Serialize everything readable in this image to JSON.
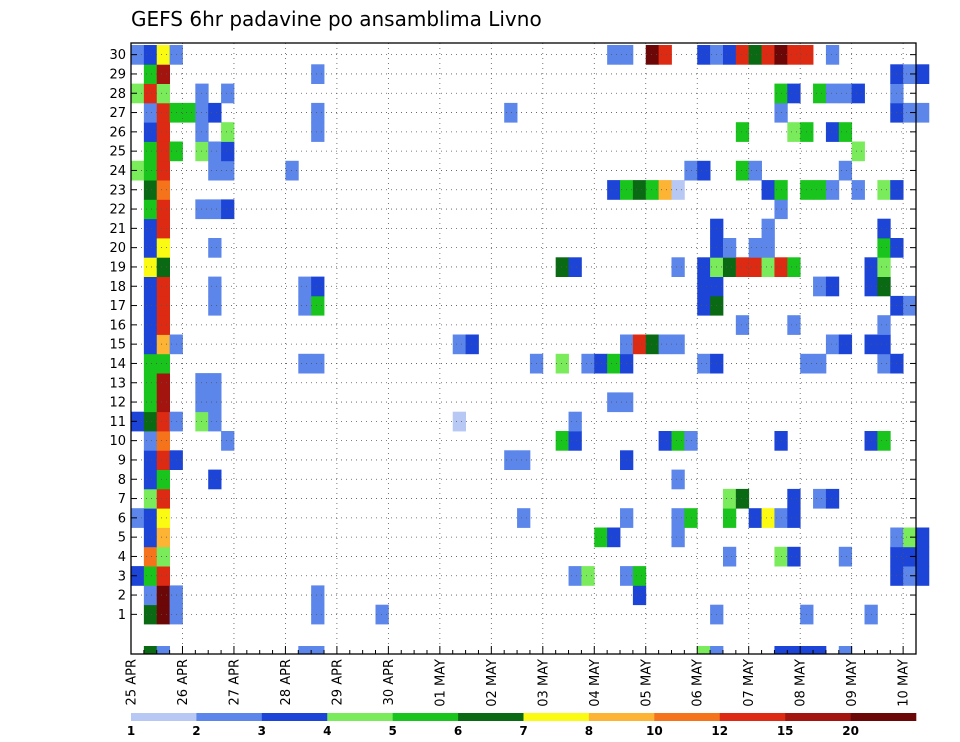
{
  "chart_data": {
    "type": "heatmap",
    "title": "GEFS 6hr padavine po ansamblima Livno",
    "xlabel": "",
    "ylabel": "",
    "x_tick_labels": [
      "25 APR",
      "26 APR",
      "27 APR",
      "28 APR",
      "29 APR",
      "30 APR",
      "01 MAY",
      "02 MAY",
      "03 MAY",
      "04 MAY",
      "05 MAY",
      "06 MAY",
      "07 MAY",
      "08 MAY",
      "09 MAY",
      "10 MAY"
    ],
    "x_steps_per_day": 4,
    "x_range_steps": [
      0,
      61
    ],
    "y_tick_labels": [
      "1",
      "2",
      "3",
      "4",
      "5",
      "6",
      "7",
      "8",
      "9",
      "10",
      "11",
      "12",
      "13",
      "14",
      "15",
      "16",
      "17",
      "18",
      "19",
      "20",
      "21",
      "22",
      "23",
      "24",
      "25",
      "26",
      "27",
      "28",
      "29",
      "30"
    ],
    "y_range_members": [
      0,
      30
    ],
    "grid": true,
    "colorbar": {
      "levels": [
        1,
        2,
        3,
        4,
        5,
        6,
        7,
        8,
        10,
        12,
        15,
        20
      ],
      "level_labels": [
        "1",
        "2",
        "3",
        "4",
        "5",
        "6",
        "7",
        "8",
        "10",
        "12",
        "15",
        "20"
      ],
      "colors": [
        "#b7c8f5",
        "#5c86ea",
        "#1c44d6",
        "#7aec5b",
        "#19c41c",
        "#0a6a14",
        "#fafa12",
        "#fdb334",
        "#f5741b",
        "#dc2a13",
        "#a3140f",
        "#6c0707"
      ]
    },
    "cells_format": "[member, step, bin]",
    "cells": [
      [
        0,
        1,
        5
      ],
      [
        0,
        2,
        11
      ],
      [
        0,
        3,
        1
      ],
      [
        0,
        14,
        1
      ],
      [
        0,
        19,
        1
      ],
      [
        0,
        52,
        1
      ],
      [
        0,
        45,
        1
      ],
      [
        0,
        57,
        1
      ],
      [
        1,
        1,
        1
      ],
      [
        1,
        2,
        11
      ],
      [
        1,
        3,
        1
      ],
      [
        1,
        14,
        1
      ],
      [
        1,
        39,
        2
      ],
      [
        2,
        0,
        2
      ],
      [
        2,
        1,
        4
      ],
      [
        2,
        2,
        9
      ],
      [
        2,
        34,
        1
      ],
      [
        2,
        35,
        3
      ],
      [
        2,
        38,
        1
      ],
      [
        2,
        39,
        4
      ],
      [
        2,
        59,
        2
      ],
      [
        2,
        60,
        1
      ],
      [
        2,
        61,
        2
      ],
      [
        3,
        1,
        8
      ],
      [
        3,
        2,
        3
      ],
      [
        3,
        46,
        1
      ],
      [
        3,
        50,
        3
      ],
      [
        3,
        51,
        2
      ],
      [
        3,
        55,
        1
      ],
      [
        3,
        59,
        2
      ],
      [
        3,
        60,
        2
      ],
      [
        3,
        61,
        2
      ],
      [
        4,
        1,
        2
      ],
      [
        4,
        2,
        7
      ],
      [
        4,
        36,
        4
      ],
      [
        4,
        37,
        2
      ],
      [
        4,
        42,
        1
      ],
      [
        4,
        59,
        1
      ],
      [
        4,
        60,
        3
      ],
      [
        4,
        61,
        2
      ],
      [
        5,
        0,
        1
      ],
      [
        5,
        1,
        2
      ],
      [
        5,
        2,
        6
      ],
      [
        5,
        30,
        1
      ],
      [
        5,
        38,
        1
      ],
      [
        5,
        42,
        1
      ],
      [
        5,
        43,
        4
      ],
      [
        5,
        46,
        4
      ],
      [
        5,
        48,
        2
      ],
      [
        5,
        49,
        6
      ],
      [
        5,
        50,
        1
      ],
      [
        5,
        51,
        2
      ],
      [
        6,
        1,
        3
      ],
      [
        6,
        2,
        9
      ],
      [
        6,
        46,
        3
      ],
      [
        6,
        47,
        5
      ],
      [
        6,
        51,
        2
      ],
      [
        6,
        53,
        1
      ],
      [
        6,
        54,
        2
      ],
      [
        7,
        1,
        2
      ],
      [
        7,
        2,
        4
      ],
      [
        7,
        6,
        2
      ],
      [
        7,
        42,
        1
      ],
      [
        8,
        1,
        2
      ],
      [
        8,
        2,
        9
      ],
      [
        8,
        3,
        2
      ],
      [
        8,
        29,
        1
      ],
      [
        8,
        30,
        1
      ],
      [
        8,
        38,
        2
      ],
      [
        9,
        1,
        1
      ],
      [
        9,
        2,
        8
      ],
      [
        9,
        7,
        1
      ],
      [
        9,
        33,
        4
      ],
      [
        9,
        34,
        2
      ],
      [
        9,
        41,
        2
      ],
      [
        9,
        42,
        4
      ],
      [
        9,
        43,
        1
      ],
      [
        9,
        50,
        2
      ],
      [
        9,
        57,
        2
      ],
      [
        9,
        58,
        4
      ],
      [
        10,
        0,
        2
      ],
      [
        10,
        1,
        5
      ],
      [
        10,
        2,
        9
      ],
      [
        10,
        3,
        1
      ],
      [
        10,
        5,
        3
      ],
      [
        10,
        6,
        1
      ],
      [
        10,
        25,
        0
      ],
      [
        10,
        34,
        1
      ],
      [
        11,
        1,
        4
      ],
      [
        11,
        2,
        10
      ],
      [
        11,
        5,
        1
      ],
      [
        11,
        6,
        1
      ],
      [
        11,
        37,
        1
      ],
      [
        11,
        38,
        1
      ],
      [
        12,
        1,
        4
      ],
      [
        12,
        2,
        10
      ],
      [
        12,
        5,
        1
      ],
      [
        12,
        6,
        1
      ],
      [
        13,
        1,
        4
      ],
      [
        13,
        2,
        4
      ],
      [
        13,
        13,
        1
      ],
      [
        13,
        14,
        1
      ],
      [
        13,
        31,
        1
      ],
      [
        13,
        33,
        3
      ],
      [
        13,
        35,
        1
      ],
      [
        13,
        36,
        2
      ],
      [
        13,
        37,
        4
      ],
      [
        13,
        38,
        2
      ],
      [
        13,
        44,
        1
      ],
      [
        13,
        45,
        2
      ],
      [
        13,
        52,
        1
      ],
      [
        13,
        53,
        1
      ],
      [
        13,
        58,
        1
      ],
      [
        13,
        59,
        2
      ],
      [
        14,
        1,
        2
      ],
      [
        14,
        2,
        7
      ],
      [
        14,
        3,
        1
      ],
      [
        14,
        25,
        1
      ],
      [
        14,
        26,
        2
      ],
      [
        14,
        38,
        1
      ],
      [
        14,
        39,
        9
      ],
      [
        14,
        40,
        5
      ],
      [
        14,
        41,
        1
      ],
      [
        14,
        42,
        1
      ],
      [
        14,
        54,
        1
      ],
      [
        14,
        55,
        2
      ],
      [
        14,
        57,
        2
      ],
      [
        14,
        58,
        2
      ],
      [
        15,
        1,
        2
      ],
      [
        15,
        2,
        9
      ],
      [
        15,
        47,
        1
      ],
      [
        15,
        51,
        1
      ],
      [
        15,
        58,
        1
      ],
      [
        16,
        1,
        2
      ],
      [
        16,
        2,
        9
      ],
      [
        16,
        6,
        1
      ],
      [
        16,
        13,
        1
      ],
      [
        16,
        14,
        4
      ],
      [
        16,
        44,
        2
      ],
      [
        16,
        45,
        5
      ],
      [
        16,
        59,
        2
      ],
      [
        16,
        60,
        1
      ],
      [
        17,
        1,
        2
      ],
      [
        17,
        2,
        9
      ],
      [
        17,
        6,
        1
      ],
      [
        17,
        13,
        1
      ],
      [
        17,
        14,
        2
      ],
      [
        17,
        44,
        2
      ],
      [
        17,
        45,
        2
      ],
      [
        17,
        53,
        1
      ],
      [
        17,
        54,
        2
      ],
      [
        17,
        57,
        2
      ],
      [
        17,
        58,
        5
      ],
      [
        18,
        1,
        6
      ],
      [
        18,
        2,
        5
      ],
      [
        18,
        33,
        5
      ],
      [
        18,
        34,
        2
      ],
      [
        18,
        42,
        1
      ],
      [
        18,
        44,
        2
      ],
      [
        18,
        45,
        3
      ],
      [
        18,
        46,
        5
      ],
      [
        18,
        47,
        9
      ],
      [
        18,
        48,
        9
      ],
      [
        18,
        49,
        3
      ],
      [
        18,
        50,
        9
      ],
      [
        18,
        51,
        4
      ],
      [
        18,
        57,
        2
      ],
      [
        18,
        58,
        3
      ],
      [
        19,
        1,
        2
      ],
      [
        19,
        2,
        6
      ],
      [
        19,
        6,
        1
      ],
      [
        19,
        45,
        2
      ],
      [
        19,
        46,
        1
      ],
      [
        19,
        48,
        1
      ],
      [
        19,
        49,
        1
      ],
      [
        19,
        58,
        4
      ],
      [
        19,
        59,
        2
      ],
      [
        20,
        1,
        2
      ],
      [
        20,
        2,
        9
      ],
      [
        20,
        45,
        2
      ],
      [
        20,
        49,
        1
      ],
      [
        20,
        58,
        2
      ],
      [
        21,
        1,
        4
      ],
      [
        21,
        2,
        9
      ],
      [
        21,
        5,
        1
      ],
      [
        21,
        6,
        1
      ],
      [
        21,
        7,
        2
      ],
      [
        21,
        50,
        1
      ],
      [
        22,
        1,
        5
      ],
      [
        22,
        2,
        8
      ],
      [
        22,
        37,
        2
      ],
      [
        22,
        38,
        4
      ],
      [
        22,
        39,
        5
      ],
      [
        22,
        40,
        4
      ],
      [
        22,
        41,
        7
      ],
      [
        22,
        42,
        0
      ],
      [
        22,
        49,
        2
      ],
      [
        22,
        50,
        4
      ],
      [
        22,
        52,
        4
      ],
      [
        22,
        53,
        4
      ],
      [
        22,
        54,
        1
      ],
      [
        22,
        56,
        1
      ],
      [
        22,
        58,
        3
      ],
      [
        22,
        59,
        2
      ],
      [
        23,
        0,
        3
      ],
      [
        23,
        1,
        4
      ],
      [
        23,
        2,
        9
      ],
      [
        23,
        6,
        1
      ],
      [
        23,
        7,
        1
      ],
      [
        23,
        12,
        1
      ],
      [
        23,
        43,
        1
      ],
      [
        23,
        44,
        2
      ],
      [
        23,
        47,
        4
      ],
      [
        23,
        48,
        1
      ],
      [
        23,
        55,
        1
      ],
      [
        24,
        1,
        4
      ],
      [
        24,
        2,
        9
      ],
      [
        24,
        3,
        4
      ],
      [
        24,
        5,
        3
      ],
      [
        24,
        6,
        1
      ],
      [
        24,
        7,
        2
      ],
      [
        24,
        56,
        3
      ],
      [
        25,
        1,
        2
      ],
      [
        25,
        2,
        9
      ],
      [
        25,
        5,
        1
      ],
      [
        25,
        7,
        3
      ],
      [
        25,
        14,
        1
      ],
      [
        25,
        54,
        2
      ],
      [
        25,
        47,
        4
      ],
      [
        25,
        51,
        3
      ],
      [
        25,
        52,
        4
      ],
      [
        25,
        55,
        4
      ],
      [
        26,
        1,
        1
      ],
      [
        26,
        2,
        9
      ],
      [
        26,
        3,
        4
      ],
      [
        26,
        4,
        4
      ],
      [
        26,
        5,
        1
      ],
      [
        26,
        6,
        2
      ],
      [
        26,
        14,
        1
      ],
      [
        26,
        29,
        1
      ],
      [
        26,
        50,
        1
      ],
      [
        26,
        59,
        2
      ],
      [
        26,
        60,
        1
      ],
      [
        26,
        61,
        1
      ],
      [
        27,
        0,
        3
      ],
      [
        27,
        1,
        9
      ],
      [
        27,
        2,
        3
      ],
      [
        27,
        5,
        1
      ],
      [
        27,
        7,
        1
      ],
      [
        27,
        50,
        4
      ],
      [
        27,
        51,
        2
      ],
      [
        27,
        53,
        4
      ],
      [
        27,
        54,
        1
      ],
      [
        27,
        55,
        1
      ],
      [
        27,
        56,
        2
      ],
      [
        27,
        59,
        1
      ],
      [
        28,
        1,
        4
      ],
      [
        28,
        2,
        10
      ],
      [
        28,
        14,
        1
      ],
      [
        28,
        59,
        2
      ],
      [
        28,
        60,
        1
      ],
      [
        28,
        61,
        2
      ],
      [
        29,
        0,
        1
      ],
      [
        29,
        1,
        2
      ],
      [
        29,
        2,
        6
      ],
      [
        29,
        3,
        1
      ],
      [
        29,
        37,
        1
      ],
      [
        29,
        38,
        1
      ],
      [
        29,
        40,
        11
      ],
      [
        29,
        41,
        9
      ],
      [
        29,
        44,
        2
      ],
      [
        29,
        45,
        1
      ],
      [
        29,
        46,
        2
      ],
      [
        29,
        47,
        9
      ],
      [
        29,
        48,
        5
      ],
      [
        29,
        49,
        9
      ],
      [
        29,
        50,
        11
      ],
      [
        29,
        51,
        9
      ],
      [
        29,
        52,
        9
      ],
      [
        29,
        54,
        1
      ]
    ],
    "bottom_row": [
      [
        1,
        5
      ],
      [
        2,
        1
      ],
      [
        13,
        1
      ],
      [
        14,
        1
      ],
      [
        44,
        3
      ],
      [
        45,
        1
      ],
      [
        50,
        2
      ],
      [
        51,
        2
      ],
      [
        52,
        2
      ],
      [
        53,
        2
      ],
      [
        55,
        1
      ]
    ],
    "bottom_row_colors_bin": true
  }
}
